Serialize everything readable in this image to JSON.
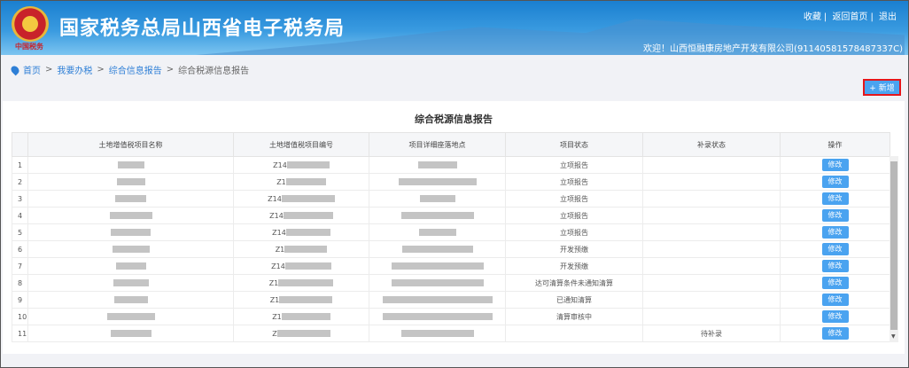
{
  "header": {
    "title": "国家税务总局山西省电子税务局",
    "seal_text": "中国税务",
    "links": [
      "收藏",
      "返回首页",
      "退出"
    ],
    "welcome": "欢迎！山西恒融康房地产开发有限公司(91140581578487337C)"
  },
  "breadcrumb": [
    "首页",
    "我要办税",
    "综合信息报告",
    "综合税源信息报告"
  ],
  "toolbar": {
    "new_label": "+ 新增"
  },
  "table": {
    "title": "综合税源信息报告",
    "columns": [
      "",
      "土地增值税项目名称",
      "土地增值税项目编号",
      "项目详细座落地点",
      "项目状态",
      "补录状态",
      "操作"
    ],
    "edit_label": "修改",
    "rows": [
      {
        "index": "1",
        "code_prefix": "Z14",
        "status": "立项报告",
        "supplement": ""
      },
      {
        "index": "2",
        "code_prefix": "Z1",
        "status": "立项报告",
        "supplement": ""
      },
      {
        "index": "3",
        "code_prefix": "Z14",
        "status": "立项报告",
        "supplement": ""
      },
      {
        "index": "4",
        "code_prefix": "Z14",
        "status": "立项报告",
        "supplement": ""
      },
      {
        "index": "5",
        "code_prefix": "Z14",
        "status": "立项报告",
        "supplement": ""
      },
      {
        "index": "6",
        "code_prefix": "Z1",
        "status": "开发预缴",
        "supplement": ""
      },
      {
        "index": "7",
        "code_prefix": "Z14",
        "status": "开发预缴",
        "supplement": ""
      },
      {
        "index": "8",
        "code_prefix": "Z1",
        "status": "达可清算条件未通知清算",
        "supplement": ""
      },
      {
        "index": "9",
        "code_prefix": "Z1",
        "status": "已通知清算",
        "supplement": ""
      },
      {
        "index": "10",
        "code_prefix": "Z1",
        "status": "清算审核中",
        "supplement": ""
      },
      {
        "index": "11",
        "code_prefix": "Z",
        "status": "",
        "supplement": "待补录"
      }
    ]
  },
  "colors": {
    "header_blue": "#1a7fd0",
    "button_blue": "#4aa3f0",
    "highlight_red": "#e5161b"
  }
}
